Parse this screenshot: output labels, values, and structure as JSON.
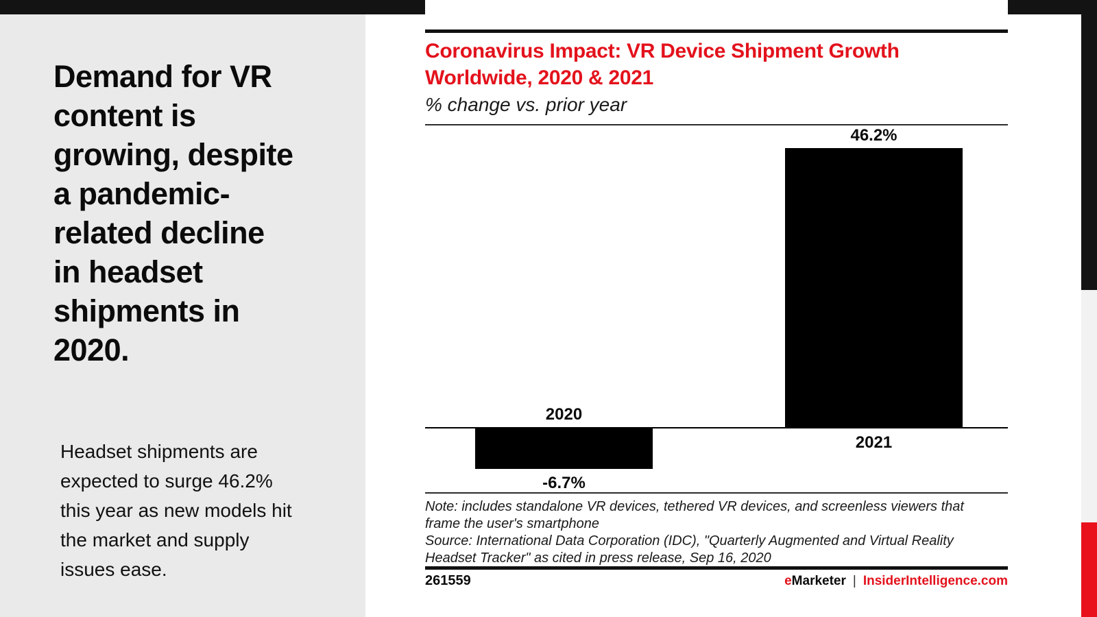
{
  "page": {
    "left_panel": {
      "heading": "Demand for VR\ncontent is\ngrowing, despite\na pandemic-\nrelated decline\nin headset\nshipments in\n2020.",
      "body": "Headset shipments are\nexpected to surge 46.2%\nthis year as new models hit\nthe market and supply\nissues ease."
    },
    "footer": {
      "chart_id": "261559",
      "brand_prefix": "e",
      "brand_name": "Marketer",
      "separator": "|",
      "site": "InsiderIntelligence.com"
    }
  },
  "chart_data": {
    "type": "bar",
    "title": "Coronavirus Impact: VR Device Shipment Growth Worldwide, 2020 & 2021",
    "title_lines": "Coronavirus Impact: VR Device Shipment Growth\nWorldwide, 2020 & 2021",
    "subtitle": "% change vs. prior year",
    "categories": [
      "2020",
      "2021"
    ],
    "values": [
      -6.7,
      46.2
    ],
    "value_labels": [
      "-6.7%",
      "46.2%"
    ],
    "ylim": [
      -10,
      50
    ],
    "bar_color": "#000000",
    "axis_note": "horizontal zero baseline only, no gridlines, no y-axis ticks",
    "note": "Note: includes standalone VR devices, tethered VR devices, and screenless viewers that\nframe the user's smartphone",
    "source": "Source: International Data Corporation (IDC), \"Quarterly Augmented and Virtual Reality\nHeadset Tracker\" as cited in press release, Sep 16, 2020"
  },
  "colors": {
    "accent_red": "#e3121c",
    "strip_red": "#e8111c",
    "top_bar_black": "#131313",
    "left_panel_gray": "#eaeaea",
    "strip_gray": "#f2f2f2",
    "bar_black": "#000000"
  }
}
